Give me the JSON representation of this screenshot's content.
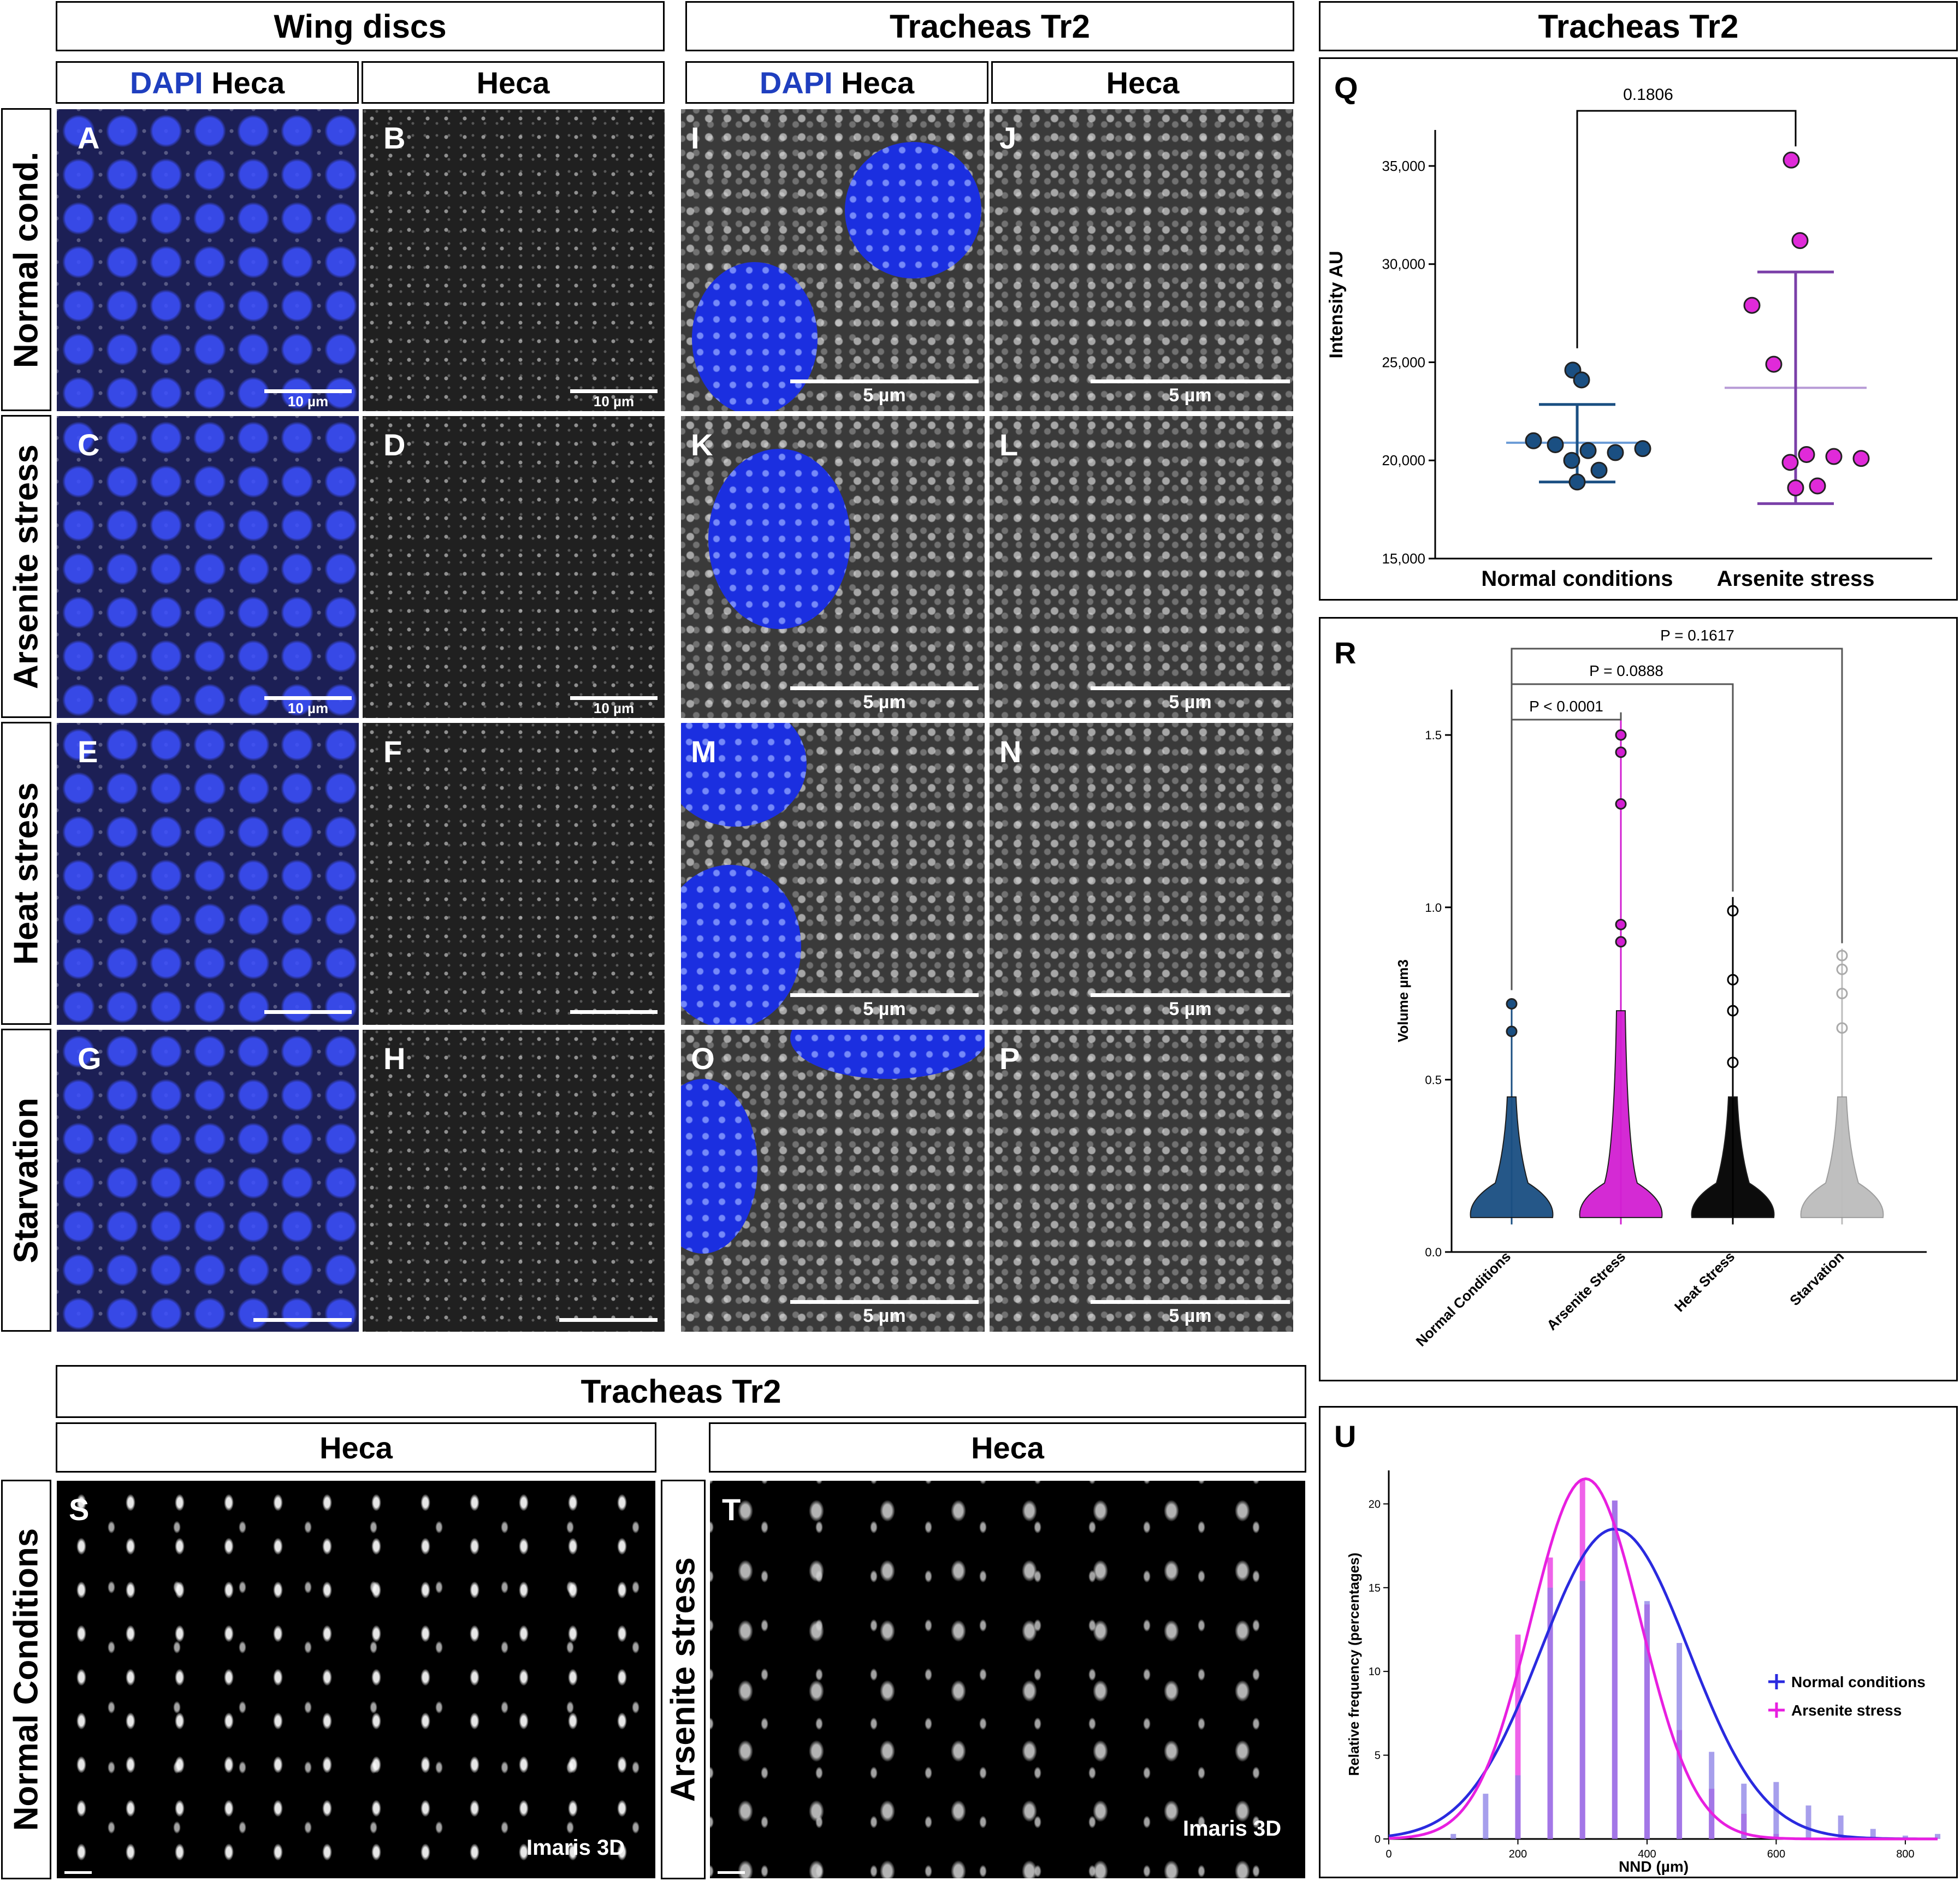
{
  "headers": {
    "wing_discs": "Wing discs",
    "tracheas_1": "Tracheas Tr2",
    "tracheas_2": "Tracheas Tr2",
    "tracheas_3": "Tracheas Tr2",
    "dapi": "DAPI",
    "heca": "Heca"
  },
  "row_labels": [
    "Normal cond.",
    "Arsenite stress",
    "Heat stress",
    "Starvation"
  ],
  "bottom_row_labels": [
    "Normal Conditions",
    "Arsenite stress"
  ],
  "panel_letters": {
    "A": "A",
    "B": "B",
    "C": "C",
    "D": "D",
    "E": "E",
    "F": "F",
    "G": "G",
    "H": "H",
    "I": "I",
    "J": "J",
    "K": "K",
    "L": "L",
    "M": "M",
    "N": "N",
    "O": "O",
    "P": "P",
    "Q": "Q",
    "R": "R",
    "S": "S",
    "T": "T",
    "U": "U"
  },
  "scale_bars": {
    "wing": "10 µm",
    "trachea": "5 µm"
  },
  "imaris_label": "Imaris 3D",
  "chart_data": [
    {
      "id": "Q",
      "type": "scatter",
      "title": "Tracheas Tr2",
      "ylabel": "Intensity AU",
      "ylim": [
        15000,
        36000
      ],
      "yticks": [
        "15,000",
        "20,000",
        "25,000",
        "30,000",
        "35,000"
      ],
      "categories": [
        "Normal conditions",
        "Arsenite stress"
      ],
      "p_value": "0.1806",
      "series": [
        {
          "name": "Normal conditions",
          "color": "#1a4f82",
          "mean": 20900,
          "sd_upper": 22850,
          "sd_lower": 18900,
          "values": [
            24600,
            24100,
            21000,
            20800,
            20500,
            20400,
            20600,
            20000,
            19500,
            18900
          ]
        },
        {
          "name": "Arsenite stress",
          "color": "#e02ad9",
          "mean": 23700,
          "sd_upper": 29600,
          "sd_lower": 17800,
          "values": [
            35300,
            31200,
            27900,
            24900,
            20300,
            20200,
            20100,
            19900,
            18700,
            18600
          ]
        }
      ]
    },
    {
      "id": "R",
      "type": "scatter",
      "ylabel": "Volume µm3",
      "ylim": [
        0,
        1.6
      ],
      "yticks": [
        "0.0",
        "0.5",
        "1.0",
        "1.5"
      ],
      "categories": [
        "Normal Conditions",
        "Arsenite Stress",
        "Heat Stress",
        "Starvation"
      ],
      "comparisons": [
        {
          "p_text": "P < 0.0001",
          "from": "Normal Conditions",
          "to": "Arsenite Stress"
        },
        {
          "p_text": "P = 0.0888",
          "from": "Normal Conditions",
          "to": "Heat Stress"
        },
        {
          "p_text": "P = 0.1617",
          "from": "Normal Conditions",
          "to": "Starvation"
        }
      ],
      "series": [
        {
          "name": "Normal Conditions",
          "color": "#1a4f82",
          "max": 0.73,
          "outliers": [
            0.72,
            0.64
          ]
        },
        {
          "name": "Arsenite Stress",
          "color": "#d21fd2",
          "max": 1.55,
          "outliers": [
            1.5,
            1.45,
            1.3,
            0.95,
            0.9
          ]
        },
        {
          "name": "Heat Stress",
          "color": "#000000",
          "max": 1.03,
          "outliers": [
            0.99,
            0.79,
            0.7,
            0.55
          ]
        },
        {
          "name": "Starvation",
          "color": "#bcbcbc",
          "max": 0.88,
          "outliers": [
            0.86,
            0.82,
            0.75,
            0.65
          ]
        }
      ]
    },
    {
      "id": "U",
      "type": "bar",
      "xlabel": "NND (µm)",
      "ylabel": "Relative frequency (percentages)",
      "xlim": [
        0,
        850
      ],
      "ylim": [
        0,
        22
      ],
      "xticks": [
        "0",
        "200",
        "400",
        "600",
        "800"
      ],
      "yticks": [
        "0",
        "5",
        "10",
        "15",
        "20"
      ],
      "x": [
        100,
        150,
        200,
        250,
        300,
        350,
        400,
        450,
        500,
        550,
        600,
        650,
        700,
        750,
        800,
        850
      ],
      "series": [
        {
          "name": "Normal conditions",
          "color": "#2a2adf",
          "values": [
            0.3,
            2.7,
            3.8,
            15.0,
            15.4,
            20.2,
            14.2,
            11.7,
            5.2,
            3.3,
            3.4,
            2.0,
            1.4,
            0.6,
            0.2,
            0.3
          ],
          "fit_mean": 350,
          "fit_sd": 115,
          "fit_peak": 18.5
        },
        {
          "name": "Arsenite stress",
          "color": "#e81fe0",
          "values": [
            0.0,
            0.0,
            12.2,
            16.8,
            21.5,
            20.2,
            14.0,
            6.5,
            3.0,
            1.5,
            0.3,
            0.0,
            0.0,
            0.0,
            0.0,
            0.0
          ],
          "fit_mean": 305,
          "fit_sd": 85,
          "fit_peak": 21.5
        }
      ]
    }
  ]
}
